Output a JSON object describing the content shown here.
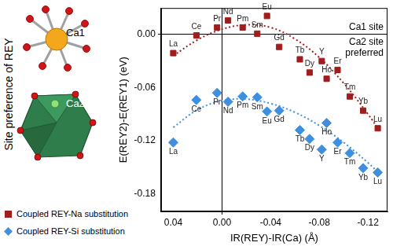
{
  "chart_data": {
    "type": "scatter",
    "x_label": "IR(REY)-IR(Ca) (Å)",
    "y_label": "E(REY2)-E(REY1) (eV)",
    "annotations": [
      {
        "text": [
          "Ca1 site"
        ]
      },
      {
        "text": [
          "Ca2 site",
          "preferred"
        ]
      }
    ],
    "xlim": [
      0.05,
      -0.136
    ],
    "xticks": [
      0.04,
      {
        "value": 0,
        "label": "0.00"
      },
      -0.04,
      -0.08,
      -0.12
    ],
    "ylim": [
      -0.2,
      0.03
    ],
    "yticks": [
      {
        "value": 0,
        "label": "0.00"
      },
      -0.06,
      -0.12,
      -0.18
    ],
    "legend": "lower left",
    "series": [
      {
        "name": "Coupled REY-Na substitution",
        "color": "#a11d1d",
        "marker": "square",
        "line_style": "dotted",
        "labels": [
          "La",
          "Ce",
          "Pr",
          "Nd",
          "Pm",
          "Sm",
          "Eu",
          "Gd",
          "Tb",
          "Dy",
          "Y",
          "Ho",
          "Er",
          "Tm",
          "Yb",
          "Lu"
        ],
        "x": [
          0.04,
          0.021,
          0.004,
          -0.005,
          -0.017,
          -0.029,
          -0.037,
          -0.047,
          -0.064,
          -0.072,
          -0.082,
          -0.086,
          -0.095,
          -0.105,
          -0.116,
          -0.128
        ],
        "values": [
          -0.021,
          -0.001,
          0.008,
          0.016,
          0.008,
          0.001,
          0.021,
          -0.014,
          -0.028,
          -0.043,
          -0.03,
          -0.05,
          -0.04,
          -0.07,
          -0.086,
          -0.106
        ],
        "trend": {
          "x": [
            0.04,
            0.02,
            0.0,
            -0.02,
            -0.04,
            -0.06,
            -0.08,
            -0.1,
            -0.12,
            -0.13
          ],
          "values": [
            -0.024,
            -0.006,
            0.006,
            0.011,
            0.008,
            -0.005,
            -0.026,
            -0.055,
            -0.09,
            -0.11
          ]
        }
      },
      {
        "name": "Coupled REY-Si substitution",
        "color": "#3f8fe0",
        "marker": "diamond",
        "line_style": "dotted",
        "labels": [
          "La",
          "Ce",
          "Pr",
          "Nd",
          "Pm",
          "Sm",
          "Eu",
          "Gd",
          "Tb",
          "Dy",
          "Y",
          "Ho",
          "Er",
          "Tm",
          "Yb",
          "Lu"
        ],
        "x": [
          0.04,
          0.021,
          0.004,
          -0.005,
          -0.017,
          -0.029,
          -0.037,
          -0.047,
          -0.064,
          -0.072,
          -0.082,
          -0.086,
          -0.095,
          -0.105,
          -0.116,
          -0.128
        ],
        "values": [
          -0.122,
          -0.074,
          -0.066,
          -0.076,
          -0.07,
          -0.071,
          -0.087,
          -0.086,
          -0.108,
          -0.118,
          -0.13,
          -0.1,
          -0.122,
          -0.134,
          -0.151,
          -0.156
        ],
        "trend": {
          "x": [
            0.04,
            0.02,
            0.0,
            -0.02,
            -0.04,
            -0.06,
            -0.08,
            -0.1,
            -0.12,
            -0.13
          ],
          "values": [
            -0.105,
            -0.085,
            -0.075,
            -0.073,
            -0.078,
            -0.088,
            -0.103,
            -0.122,
            -0.145,
            -0.158
          ]
        }
      }
    ]
  },
  "figure": {
    "title": "Site preference of REY",
    "sites": [
      "Ca1",
      "Ca2"
    ]
  }
}
